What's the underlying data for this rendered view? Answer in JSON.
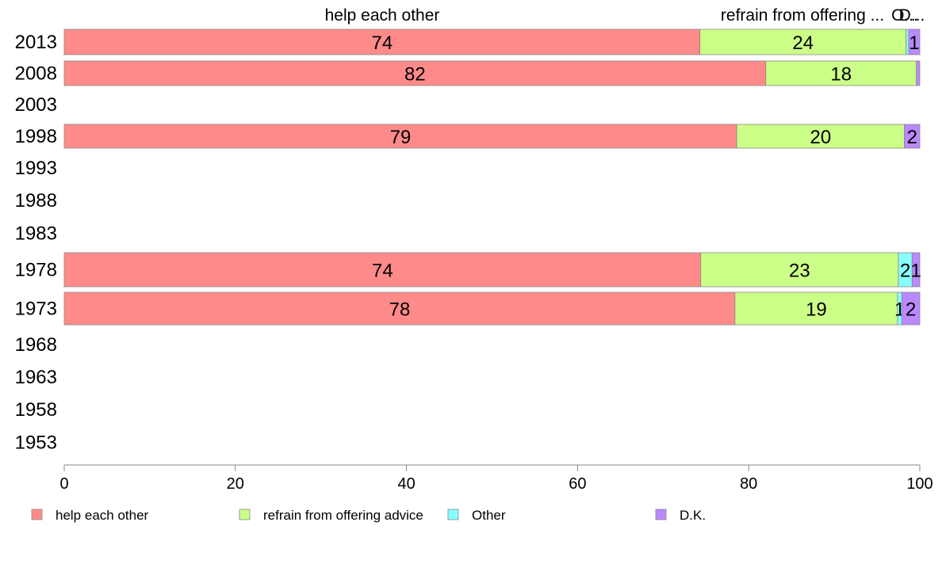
{
  "chart_data": {
    "type": "bar",
    "orientation": "horizontal",
    "stacked": true,
    "categories": [
      "2013",
      "2008",
      "2003",
      "1998",
      "1993",
      "1988",
      "1983",
      "1978",
      "1973",
      "1968",
      "1963",
      "1958",
      "1953"
    ],
    "series": [
      {
        "name": "help each other",
        "color": "#ff8a8a",
        "values": [
          74.3,
          82,
          null,
          78.6,
          null,
          null,
          null,
          74.4,
          78.4,
          null,
          null,
          null,
          null
        ],
        "labels": [
          "74",
          "82",
          "",
          "79",
          "",
          "",
          "",
          "74",
          "78",
          "",
          "",
          "",
          ""
        ]
      },
      {
        "name": "refrain from offering advice",
        "color": "#ccff88",
        "values": [
          24.1,
          17.6,
          null,
          19.6,
          null,
          null,
          null,
          23.1,
          19.0,
          null,
          null,
          null,
          null
        ],
        "labels": [
          "24",
          "18",
          "",
          "20",
          "",
          "",
          "",
          "23",
          "19",
          "",
          "",
          "",
          ""
        ]
      },
      {
        "name": "Other",
        "color": "#88ffff",
        "values": [
          0.3,
          0,
          null,
          0,
          null,
          null,
          null,
          1.6,
          0.5,
          null,
          null,
          null,
          null
        ],
        "labels": [
          "",
          "",
          "",
          "",
          "",
          "",
          "",
          "2",
          "1",
          "",
          "",
          "",
          ""
        ]
      },
      {
        "name": "D.K.",
        "color": "#bb88ff",
        "values": [
          1.3,
          0.4,
          null,
          1.8,
          null,
          null,
          null,
          0.9,
          2.1,
          null,
          null,
          null,
          null
        ],
        "labels": [
          "1",
          "",
          "",
          "2",
          "",
          "",
          "",
          "1",
          "2",
          "",
          "",
          "",
          ""
        ]
      }
    ],
    "top_labels": [
      "help each other",
      "refrain from offering ...",
      "O...",
      "D..."
    ],
    "xlim": [
      0,
      100
    ],
    "xticks": [
      "0",
      "20",
      "40",
      "60",
      "80",
      "100"
    ],
    "grid": false,
    "legend_position": "bottom"
  }
}
